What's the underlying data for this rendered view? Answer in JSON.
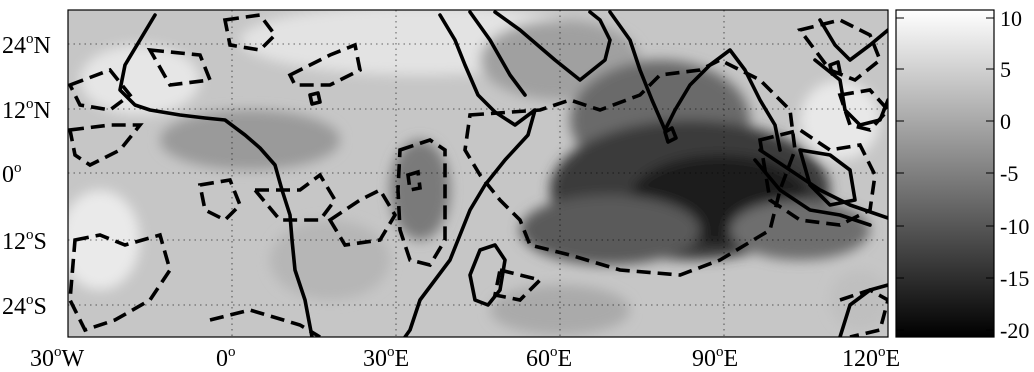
{
  "map": {
    "lat_labels": [
      {
        "num": "24",
        "sup": "o",
        "hem": "N"
      },
      {
        "num": "12",
        "sup": "o",
        "hem": "N"
      },
      {
        "num": "0",
        "sup": "o",
        "hem": ""
      },
      {
        "num": "12",
        "sup": "o",
        "hem": "S"
      },
      {
        "num": "24",
        "sup": "o",
        "hem": "S"
      }
    ],
    "lon_labels": [
      {
        "num": "30",
        "sup": "o",
        "hem": "W"
      },
      {
        "num": "0",
        "sup": "o",
        "hem": ""
      },
      {
        "num": "30",
        "sup": "o",
        "hem": "E"
      },
      {
        "num": "60",
        "sup": "o",
        "hem": "E"
      },
      {
        "num": "90",
        "sup": "o",
        "hem": "E"
      },
      {
        "num": "120",
        "sup": "o",
        "hem": "E"
      }
    ],
    "lon_range": [
      -30,
      120
    ],
    "lat_range": [
      -30,
      30
    ],
    "colorbar": {
      "ticks": [
        "10",
        "5",
        "0",
        "-5",
        "-10",
        "-15",
        "-20"
      ],
      "range": [
        -20,
        10
      ],
      "colormap": "grayscale (black = low, white = high)"
    },
    "colors": {
      "coast": "#000000",
      "contour": "#000000",
      "grid": "#000000"
    }
  }
}
